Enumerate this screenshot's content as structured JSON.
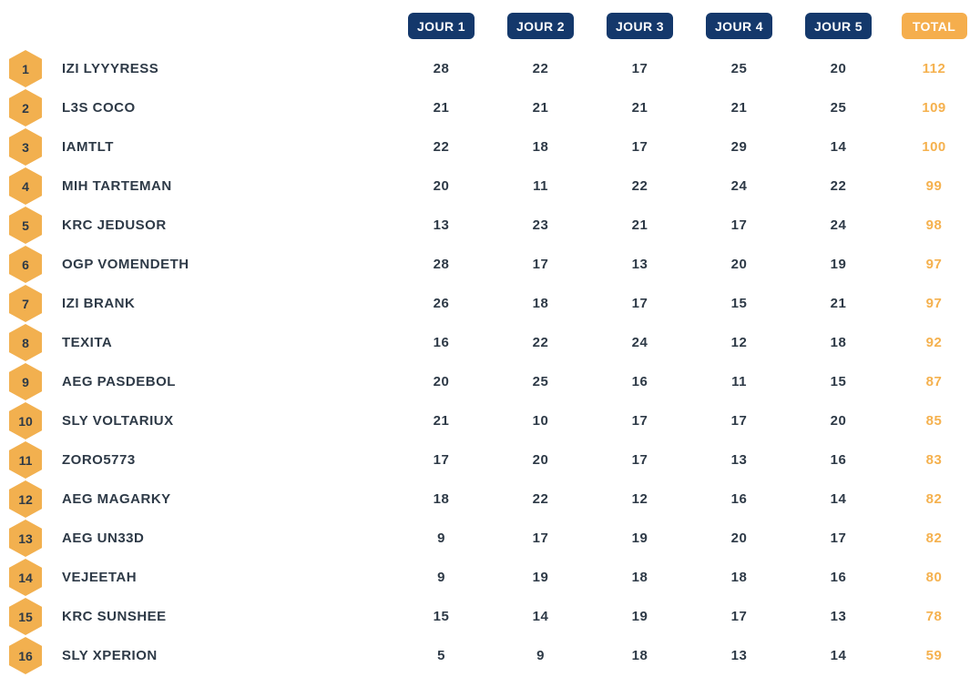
{
  "colors": {
    "navy_badge": "#14386b",
    "orange_badge": "#f5ae4d",
    "orange_hexagon": "#f2b04f",
    "orange_total_text": "#f5b14e",
    "dark_text": "#2e3a47",
    "background": "#ffffff"
  },
  "header": {
    "day_columns": [
      "JOUR 1",
      "JOUR 2",
      "JOUR 3",
      "JOUR 4",
      "JOUR 5"
    ],
    "total_label": "TOTAL"
  },
  "rows": [
    {
      "rank": 1,
      "name": "IZI LYYYRESS",
      "scores": [
        28,
        22,
        17,
        25,
        20
      ],
      "total": 112
    },
    {
      "rank": 2,
      "name": "L3S COCO",
      "scores": [
        21,
        21,
        21,
        21,
        25
      ],
      "total": 109
    },
    {
      "rank": 3,
      "name": "IAMTLT",
      "scores": [
        22,
        18,
        17,
        29,
        14
      ],
      "total": 100
    },
    {
      "rank": 4,
      "name": "MIH TARTEMAN",
      "scores": [
        20,
        11,
        22,
        24,
        22
      ],
      "total": 99
    },
    {
      "rank": 5,
      "name": "KRC JEDUSOR",
      "scores": [
        13,
        23,
        21,
        17,
        24
      ],
      "total": 98
    },
    {
      "rank": 6,
      "name": "OGP VOMENDETH",
      "scores": [
        28,
        17,
        13,
        20,
        19
      ],
      "total": 97
    },
    {
      "rank": 7,
      "name": "IZI BRANK",
      "scores": [
        26,
        18,
        17,
        15,
        21
      ],
      "total": 97
    },
    {
      "rank": 8,
      "name": "TEXITA",
      "scores": [
        16,
        22,
        24,
        12,
        18
      ],
      "total": 92
    },
    {
      "rank": 9,
      "name": "AEG PASDEBOL",
      "scores": [
        20,
        25,
        16,
        11,
        15
      ],
      "total": 87
    },
    {
      "rank": 10,
      "name": "SLY VOLTARIUX",
      "scores": [
        21,
        10,
        17,
        17,
        20
      ],
      "total": 85
    },
    {
      "rank": 11,
      "name": "ZORO5773",
      "scores": [
        17,
        20,
        17,
        13,
        16
      ],
      "total": 83
    },
    {
      "rank": 12,
      "name": "AEG MAGARKY",
      "scores": [
        18,
        22,
        12,
        16,
        14
      ],
      "total": 82
    },
    {
      "rank": 13,
      "name": "AEG UN33D",
      "scores": [
        9,
        17,
        19,
        20,
        17
      ],
      "total": 82
    },
    {
      "rank": 14,
      "name": "VEJEETAH",
      "scores": [
        9,
        19,
        18,
        18,
        16
      ],
      "total": 80
    },
    {
      "rank": 15,
      "name": "KRC SUNSHEE",
      "scores": [
        15,
        14,
        19,
        17,
        13
      ],
      "total": 78
    },
    {
      "rank": 16,
      "name": "SLY XPERION",
      "scores": [
        5,
        9,
        18,
        13,
        14
      ],
      "total": 59
    }
  ]
}
